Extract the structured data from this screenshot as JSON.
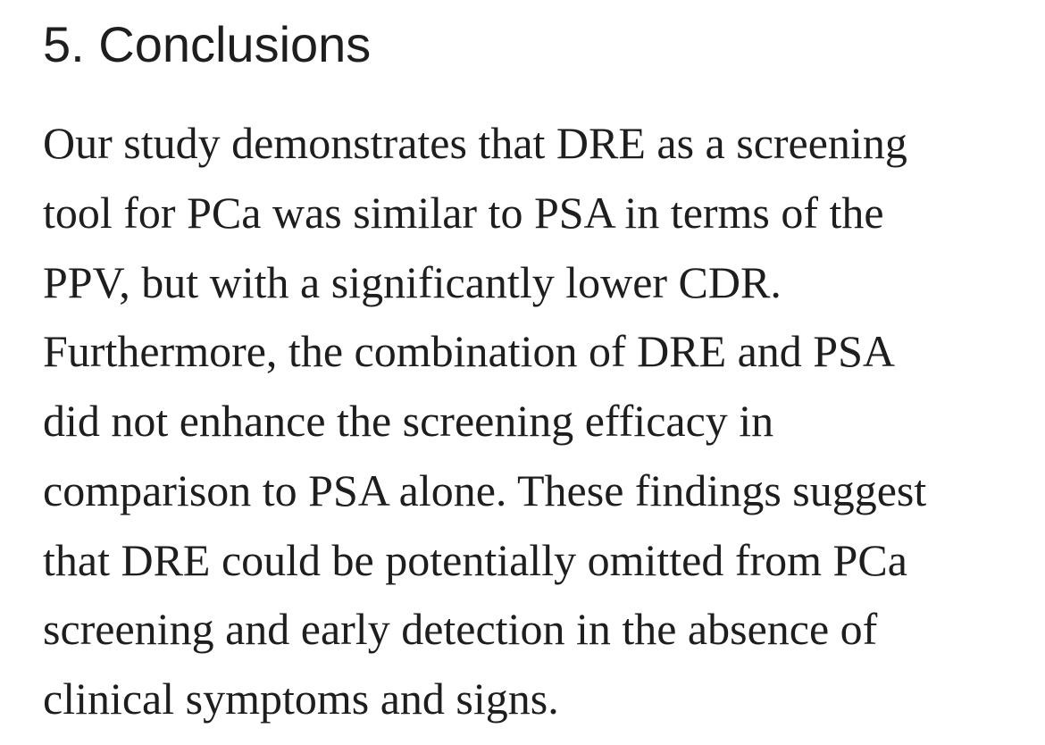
{
  "section": {
    "title": "5. Conclusions",
    "paragraph_lines": [
      "Our study demonstrates that DRE as a screening",
      "tool for PCa was similar to PSA in terms of the",
      "PPV, but with a significantly lower CDR.",
      "Furthermore, the combination of DRE and PSA",
      "did not enhance the screening efficacy in",
      "comparison to PSA alone. These findings suggest",
      "that DRE could be potentially omitted from PCa",
      "screening and early detection in the absence of",
      "clinical symptoms and signs."
    ]
  }
}
